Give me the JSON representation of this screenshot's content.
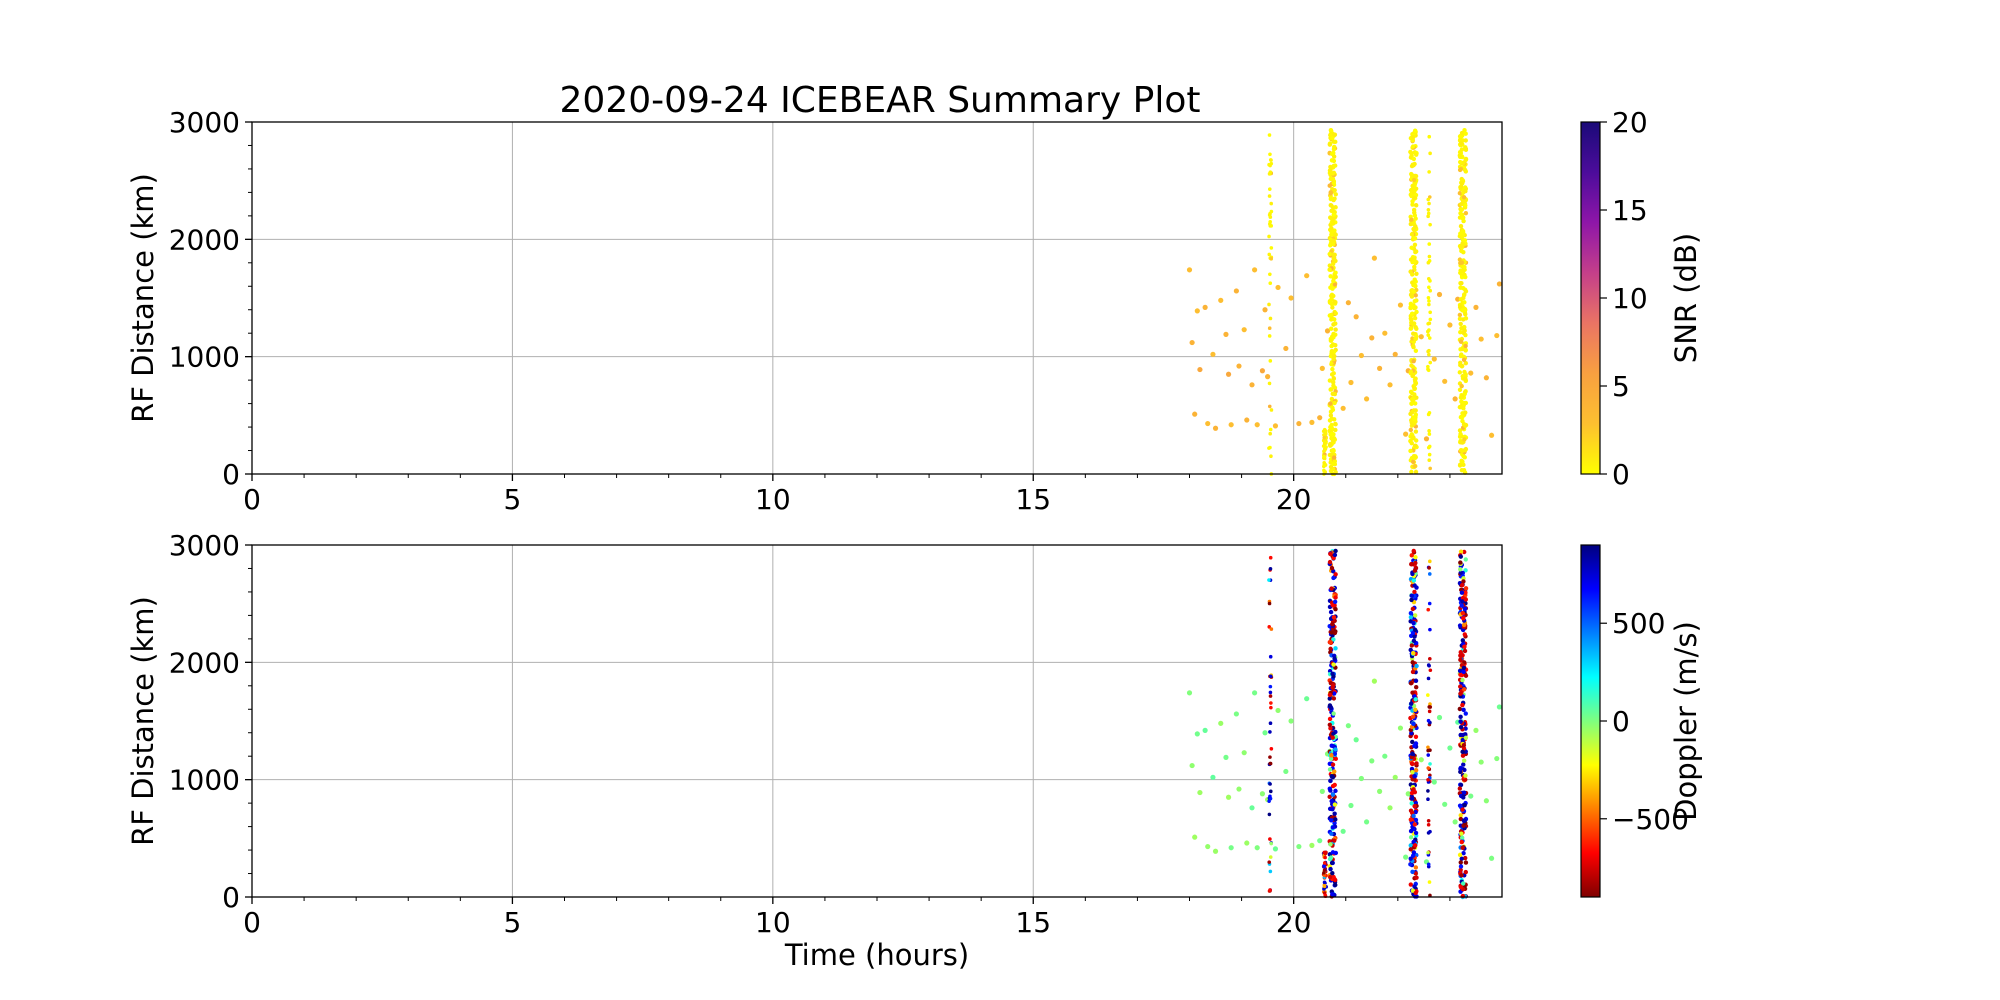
{
  "chart_data": {
    "title": "2020-09-24 ICEBEAR Summary Plot",
    "type": "scatter",
    "x_range": [
      0,
      24
    ],
    "y_range": [
      0,
      3000
    ],
    "x_ticks": [
      0,
      5,
      10,
      15,
      20
    ],
    "y_ticks": [
      0,
      1000,
      2000,
      3000
    ],
    "grid": true,
    "panels": [
      {
        "ylabel": "RF Distance (km)",
        "xlabel": "",
        "colorbar": {
          "label": "SNR (dB)",
          "range": [
            0,
            20
          ],
          "ticks": [
            0,
            5,
            10,
            15,
            20
          ],
          "colormap": [
            "#ffff00",
            "#fdc030",
            "#f8a040",
            "#ea7464",
            "#c43f8a",
            "#8e16a8",
            "#4c0c9b",
            "#1a0a78"
          ]
        }
      },
      {
        "ylabel": "RF Distance (km)",
        "xlabel": "Time (hours)",
        "colorbar": {
          "label": "Doppler (m/s)",
          "range": [
            -900,
            900
          ],
          "ticks": [
            -500,
            0,
            500
          ],
          "colormap": [
            "#7f0000",
            "#ff0000",
            "#ff7f00",
            "#ffff00",
            "#7fff7f",
            "#00ffff",
            "#007fff",
            "#0000ff",
            "#00007f"
          ]
        }
      }
    ],
    "event_columns": [
      {
        "x": 19.55,
        "y_min": 0,
        "y_max": 2900,
        "density": "sparse"
      },
      {
        "x": 20.6,
        "y_min": 0,
        "y_max": 380,
        "density": "sparse"
      },
      {
        "x": 20.75,
        "y_min": 0,
        "y_max": 2950,
        "density": "dense"
      },
      {
        "x": 22.3,
        "y_min": 0,
        "y_max": 2950,
        "density": "dense"
      },
      {
        "x": 22.6,
        "y_min": 0,
        "y_max": 2900,
        "density": "sparse"
      },
      {
        "x": 23.25,
        "y_min": 0,
        "y_max": 2950,
        "density": "dense"
      }
    ],
    "scatter_points": [
      {
        "x": 18.0,
        "y": 1740,
        "snr": 3
      },
      {
        "x": 18.05,
        "y": 1120,
        "snr": 4
      },
      {
        "x": 18.1,
        "y": 510,
        "snr": 4
      },
      {
        "x": 18.15,
        "y": 1390,
        "snr": 3
      },
      {
        "x": 18.2,
        "y": 890,
        "snr": 5
      },
      {
        "x": 18.3,
        "y": 1420,
        "snr": 4
      },
      {
        "x": 18.35,
        "y": 430,
        "snr": 3
      },
      {
        "x": 18.45,
        "y": 1020,
        "snr": 3
      },
      {
        "x": 18.5,
        "y": 390,
        "snr": 4
      },
      {
        "x": 18.6,
        "y": 1480,
        "snr": 3
      },
      {
        "x": 18.7,
        "y": 1190,
        "snr": 4
      },
      {
        "x": 18.75,
        "y": 850,
        "snr": 5
      },
      {
        "x": 18.8,
        "y": 420,
        "snr": 3
      },
      {
        "x": 18.9,
        "y": 1560,
        "snr": 4
      },
      {
        "x": 18.95,
        "y": 920,
        "snr": 4
      },
      {
        "x": 19.05,
        "y": 1230,
        "snr": 3
      },
      {
        "x": 19.1,
        "y": 460,
        "snr": 4
      },
      {
        "x": 19.2,
        "y": 760,
        "snr": 4
      },
      {
        "x": 19.25,
        "y": 1740,
        "snr": 3
      },
      {
        "x": 19.3,
        "y": 420,
        "snr": 3
      },
      {
        "x": 19.4,
        "y": 880,
        "snr": 5
      },
      {
        "x": 19.45,
        "y": 1400,
        "snr": 4
      },
      {
        "x": 19.5,
        "y": 830,
        "snr": 4
      },
      {
        "x": 19.65,
        "y": 410,
        "snr": 3
      },
      {
        "x": 19.7,
        "y": 1590,
        "snr": 3
      },
      {
        "x": 19.85,
        "y": 1070,
        "snr": 4
      },
      {
        "x": 19.95,
        "y": 1500,
        "snr": 3
      },
      {
        "x": 20.1,
        "y": 430,
        "snr": 4
      },
      {
        "x": 20.25,
        "y": 1690,
        "snr": 3
      },
      {
        "x": 20.35,
        "y": 440,
        "snr": 3
      },
      {
        "x": 20.5,
        "y": 480,
        "snr": 4
      },
      {
        "x": 20.55,
        "y": 900,
        "snr": 3
      },
      {
        "x": 20.65,
        "y": 1220,
        "snr": 4
      },
      {
        "x": 20.95,
        "y": 560,
        "snr": 3
      },
      {
        "x": 21.05,
        "y": 1460,
        "snr": 4
      },
      {
        "x": 21.1,
        "y": 780,
        "snr": 3
      },
      {
        "x": 21.2,
        "y": 1340,
        "snr": 4
      },
      {
        "x": 21.3,
        "y": 1010,
        "snr": 3
      },
      {
        "x": 21.4,
        "y": 640,
        "snr": 3
      },
      {
        "x": 21.5,
        "y": 1160,
        "snr": 4
      },
      {
        "x": 21.55,
        "y": 1840,
        "snr": 3
      },
      {
        "x": 21.65,
        "y": 900,
        "snr": 4
      },
      {
        "x": 21.75,
        "y": 1200,
        "snr": 3
      },
      {
        "x": 21.85,
        "y": 760,
        "snr": 3
      },
      {
        "x": 21.95,
        "y": 1020,
        "snr": 4
      },
      {
        "x": 22.05,
        "y": 1440,
        "snr": 3
      },
      {
        "x": 22.15,
        "y": 340,
        "snr": 3
      },
      {
        "x": 22.2,
        "y": 880,
        "snr": 4
      },
      {
        "x": 22.45,
        "y": 1170,
        "snr": 3
      },
      {
        "x": 22.55,
        "y": 300,
        "snr": 4
      },
      {
        "x": 22.7,
        "y": 980,
        "snr": 3
      },
      {
        "x": 22.8,
        "y": 1530,
        "snr": 4
      },
      {
        "x": 22.9,
        "y": 790,
        "snr": 3
      },
      {
        "x": 23.0,
        "y": 1270,
        "snr": 3
      },
      {
        "x": 23.1,
        "y": 640,
        "snr": 4
      },
      {
        "x": 23.15,
        "y": 1490,
        "snr": 4
      },
      {
        "x": 23.4,
        "y": 860,
        "snr": 3
      },
      {
        "x": 23.5,
        "y": 1420,
        "snr": 4
      },
      {
        "x": 23.6,
        "y": 1150,
        "snr": 3
      },
      {
        "x": 23.7,
        "y": 820,
        "snr": 4
      },
      {
        "x": 23.8,
        "y": 330,
        "snr": 3
      },
      {
        "x": 23.9,
        "y": 1180,
        "snr": 3
      },
      {
        "x": 23.95,
        "y": 1620,
        "snr": 4
      }
    ]
  }
}
